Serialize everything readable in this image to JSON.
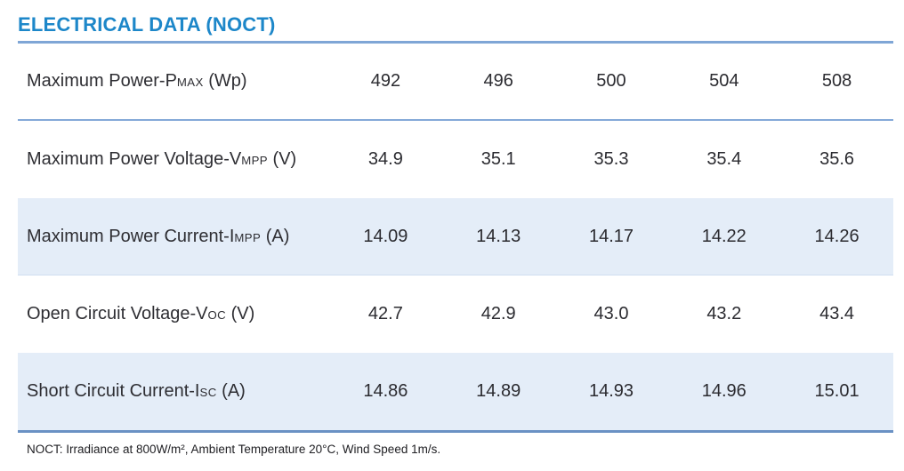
{
  "title": "ELECTRICAL DATA (NOCT)",
  "colors": {
    "title": "#1d87c9",
    "title_rule": "#7fa6d6",
    "separator": "#84a9d8",
    "shaded_row_bg": "#e4edf8",
    "bottom_rule": "#6a91c4",
    "body_text": "#2e2e33"
  },
  "table": {
    "rows": [
      {
        "label_main": "Maximum Power-P",
        "label_sub": "MAX",
        "label_rest": " (Wp)",
        "values": [
          "492",
          "496",
          "500",
          "504",
          "508"
        ]
      },
      {
        "label_main": "Maximum Power Voltage-V",
        "label_sub": "MPP",
        "label_rest": " (V)",
        "values": [
          "34.9",
          "35.1",
          "35.3",
          "35.4",
          "35.6"
        ]
      },
      {
        "label_main": "Maximum Power Current-I",
        "label_sub": "MPP",
        "label_rest": " (A)",
        "values": [
          "14.09",
          "14.13",
          "14.17",
          "14.22",
          "14.26"
        ]
      },
      {
        "label_main": "Open Circuit Voltage-V",
        "label_sub": "OC",
        "label_rest": " (V)",
        "values": [
          "42.7",
          "42.9",
          "43.0",
          "43.2",
          "43.4"
        ]
      },
      {
        "label_main": "Short Circuit Current-I",
        "label_sub": "SC",
        "label_rest": " (A)",
        "values": [
          "14.86",
          "14.89",
          "14.93",
          "14.96",
          "15.01"
        ]
      }
    ]
  },
  "footnote": "NOCT: Irradiance at 800W/m², Ambient Temperature 20°C, Wind Speed 1m/s."
}
